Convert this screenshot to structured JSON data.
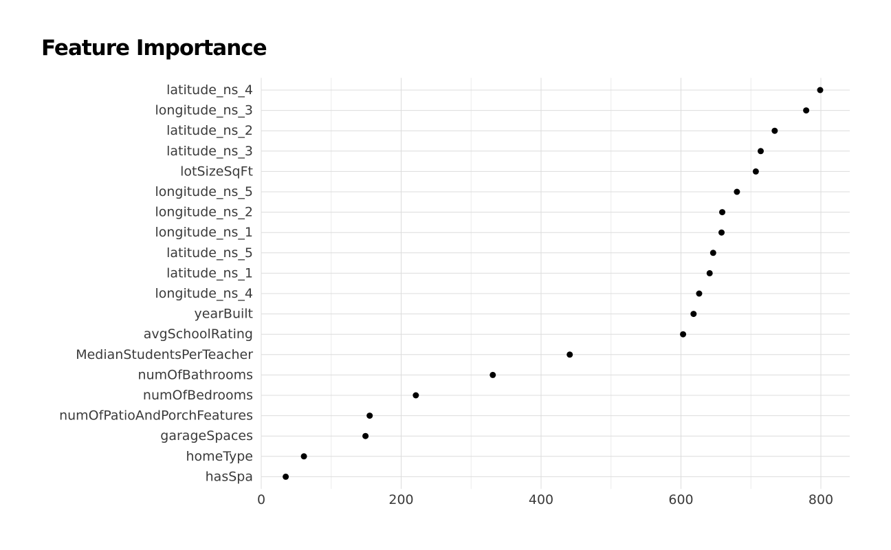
{
  "chart_data": {
    "type": "scatter",
    "title": "Feature Importance",
    "xlabel": "",
    "ylabel": "",
    "xlim": [
      0,
      840
    ],
    "x_ticks": [
      0,
      200,
      400,
      600,
      800
    ],
    "grid": true,
    "point_color": "#000000",
    "categories": [
      "latitude_ns_4",
      "longitude_ns_3",
      "latitude_ns_2",
      "latitude_ns_3",
      "lotSizeSqFt",
      "longitude_ns_5",
      "longitude_ns_2",
      "longitude_ns_1",
      "latitude_ns_5",
      "latitude_ns_1",
      "longitude_ns_4",
      "yearBuilt",
      "avgSchoolRating",
      "MedianStudentsPerTeacher",
      "numOfBathrooms",
      "numOfBedrooms",
      "numOfPatioAndPorchFeatures",
      "garageSpaces",
      "homeType",
      "hasSpa"
    ],
    "values": [
      799,
      779,
      734,
      714,
      707,
      680,
      659,
      658,
      646,
      641,
      626,
      618,
      603,
      441,
      331,
      221,
      155,
      149,
      61,
      35
    ]
  }
}
